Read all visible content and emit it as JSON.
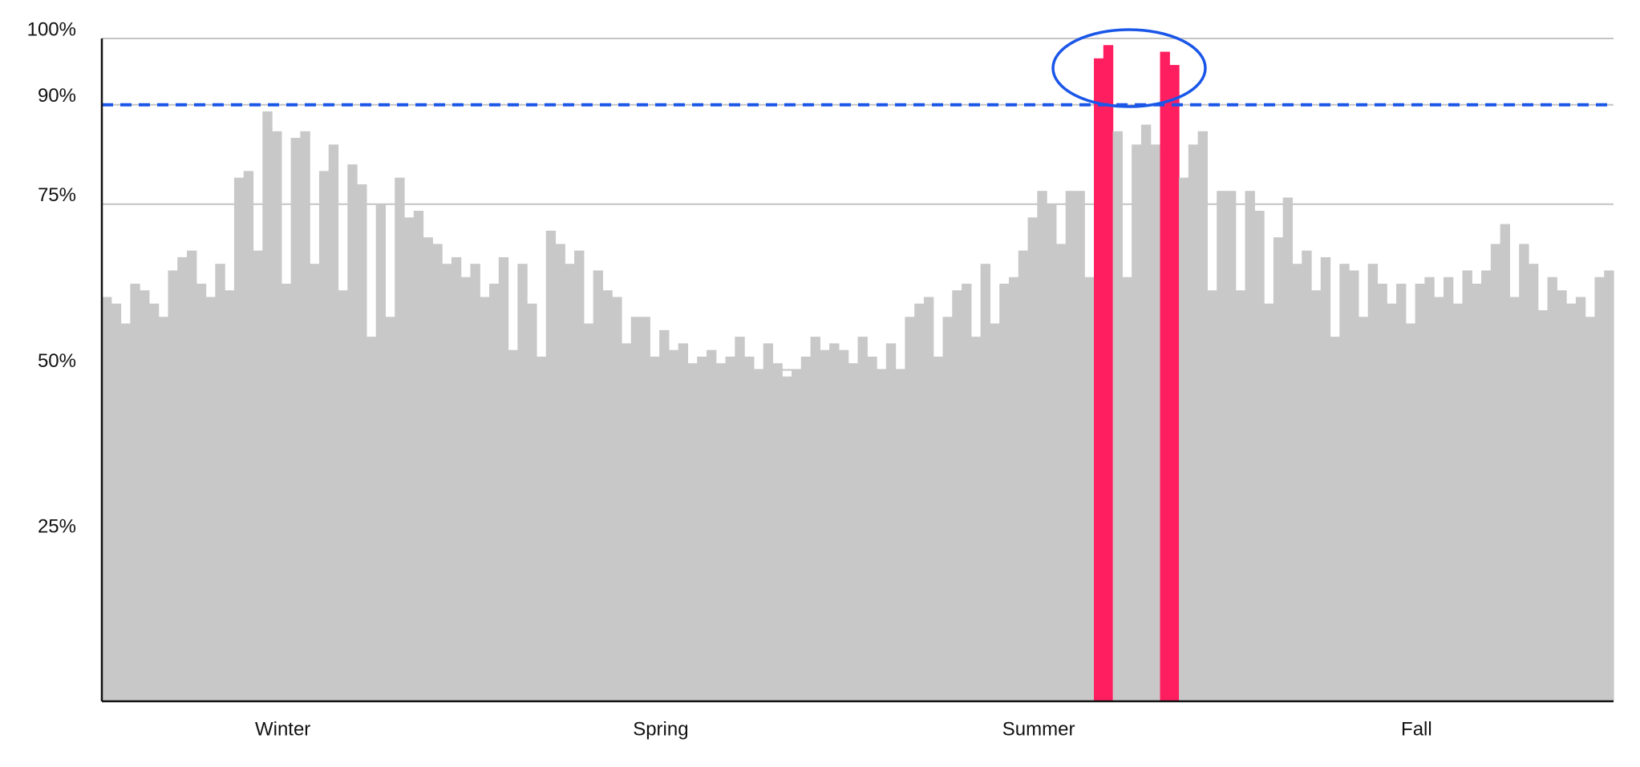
{
  "chart_data": {
    "type": "bar",
    "x_labels": [
      "Winter",
      "Spring",
      "Summer",
      "Fall"
    ],
    "values": [
      61,
      60,
      57,
      63,
      62,
      60,
      58,
      65,
      67,
      68,
      63,
      61,
      66,
      62,
      79,
      80,
      68,
      89,
      86,
      63,
      85,
      86,
      66,
      80,
      84,
      62,
      81,
      78,
      55,
      75,
      58,
      79,
      73,
      74,
      70,
      69,
      66,
      67,
      64,
      66,
      61,
      63,
      67,
      53,
      66,
      60,
      52,
      71,
      69,
      66,
      68,
      57,
      65,
      62,
      61,
      54,
      58,
      58,
      52,
      56,
      53,
      54,
      51,
      52,
      53,
      51,
      52,
      55,
      52,
      50,
      54,
      51,
      49,
      50,
      52,
      55,
      53,
      54,
      53,
      51,
      55,
      52,
      50,
      54,
      50,
      58,
      60,
      61,
      52,
      58,
      62,
      63,
      55,
      66,
      57,
      63,
      64,
      68,
      73,
      77,
      75,
      69,
      77,
      77,
      64,
      97,
      99,
      86,
      64,
      84,
      87,
      84,
      98,
      96,
      79,
      84,
      86,
      62,
      77,
      77,
      62,
      77,
      74,
      60,
      70,
      76,
      66,
      68,
      62,
      67,
      55,
      66,
      65,
      58,
      66,
      63,
      60,
      63,
      57,
      63,
      64,
      61,
      64,
      60,
      65,
      63,
      65,
      69,
      72,
      61,
      69,
      66,
      59,
      64,
      62,
      60,
      61,
      58,
      64,
      65
    ],
    "color": "#c8c8c8",
    "highlight": {
      "color": "#ff1f60",
      "indices": [
        105,
        106,
        112,
        113
      ]
    },
    "reference_line": {
      "value": 90,
      "color": "#1a56e8"
    },
    "ylim": [
      0,
      100
    ],
    "yticks": [
      {
        "value": 25,
        "label": "25%"
      },
      {
        "value": 50,
        "label": "50%"
      },
      {
        "value": 75,
        "label": "75%"
      },
      {
        "value": 90,
        "label": "90%"
      },
      {
        "value": 100,
        "label": "100%"
      }
    ],
    "grid": true
  }
}
